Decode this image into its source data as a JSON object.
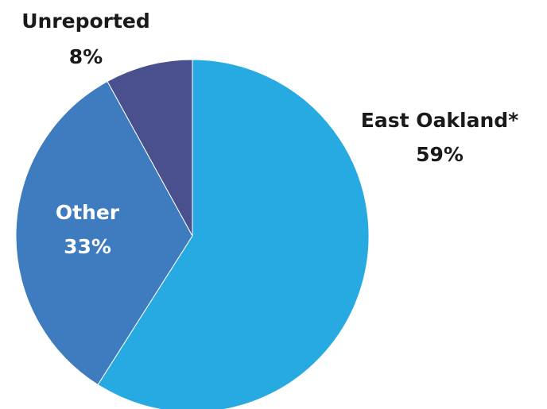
{
  "chart_data": {
    "type": "pie",
    "slices": [
      {
        "label": "East Oakland*",
        "value": 59,
        "display": "59%",
        "color": "#27a9e1"
      },
      {
        "label": "Other",
        "value": 33,
        "display": "33%",
        "color": "#3e7bbf"
      },
      {
        "label": "Unreported",
        "value": 8,
        "display": "8%",
        "color": "#4a4f8e"
      }
    ],
    "start": "12 o'clock",
    "direction": "clockwise",
    "legend": "none"
  }
}
